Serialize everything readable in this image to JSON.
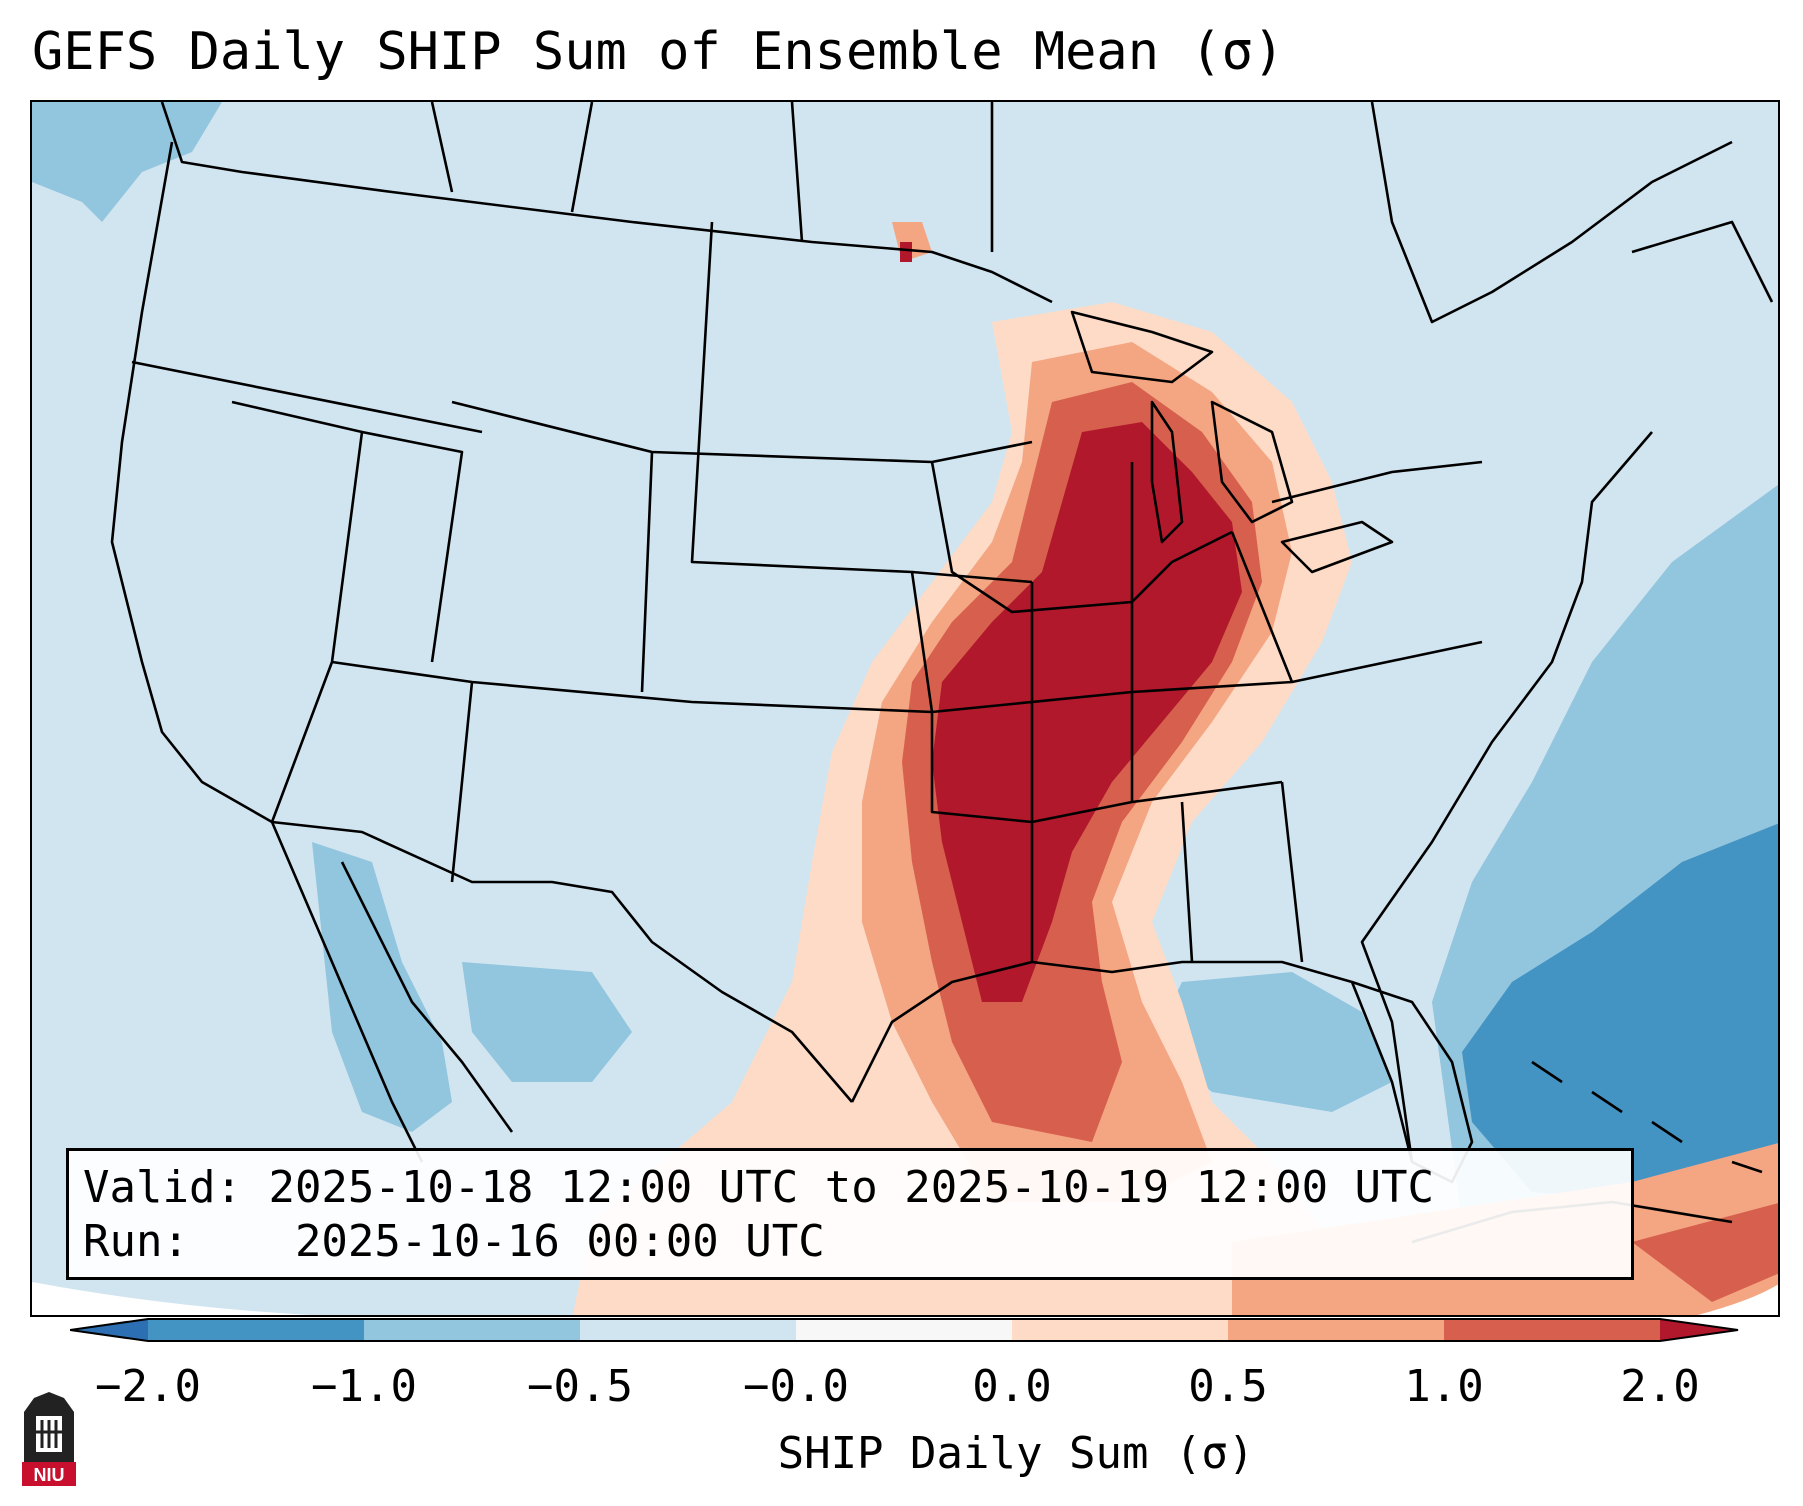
{
  "title": "GEFS Daily SHIP Sum of Ensemble Mean (σ)",
  "info": {
    "valid_label": "Valid:",
    "valid_value": "2025-10-18 12:00 UTC to 2025-10-19 12:00 UTC",
    "run_label": "Run:",
    "run_value": "2025-10-16 00:00 UTC"
  },
  "colorbar": {
    "label": "SHIP Daily Sum (σ)",
    "ticks": [
      "−2.0",
      "−1.0",
      "−0.5",
      "−0.0",
      "0.0",
      "0.5",
      "1.0",
      "2.0"
    ],
    "colors": {
      "below": "#2c6fb2",
      "c1": "#4393c3",
      "c2": "#92c5de",
      "c3": "#d1e5f0",
      "c4": "#f7f7f7",
      "c5": "#fddbc7",
      "c6": "#f4a582",
      "c7": "#d6604d",
      "above": "#b2182b"
    }
  },
  "logo": {
    "text": "NIU"
  }
}
